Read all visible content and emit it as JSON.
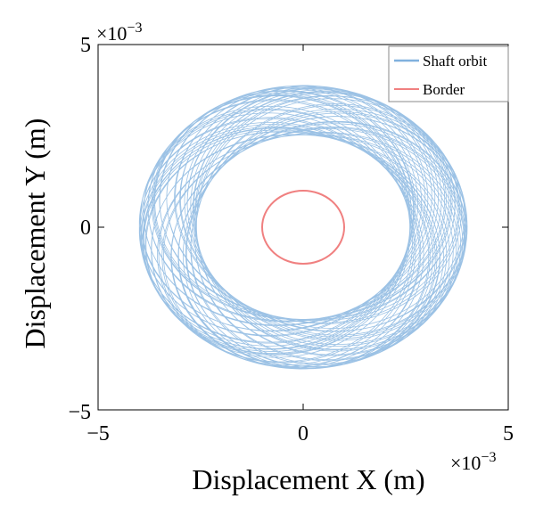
{
  "chart_data": {
    "type": "line",
    "xlabel": "Displacement X (m)",
    "ylabel": "Displacement Y (m)",
    "x_exponent": "×10",
    "x_exponent_power": "−3",
    "y_exponent": "×10",
    "y_exponent_power": "−3",
    "xlim": [
      -5,
      5
    ],
    "ylim": [
      -5,
      5
    ],
    "x_ticks": [
      -5,
      0,
      5
    ],
    "x_tick_labels": [
      "−5",
      "0",
      "5"
    ],
    "y_ticks": [
      -5,
      0,
      5
    ],
    "y_tick_labels": [
      "−5",
      "0",
      "5"
    ],
    "grid": false,
    "legend_position": "top-right",
    "series": [
      {
        "name": "Shaft orbit",
        "color": "#4a90d0",
        "shape": "precessing rose orbit",
        "center": [
          0,
          0
        ],
        "radius_min": 2.6,
        "radius_max": 4.0,
        "lobes": 9
      },
      {
        "name": "Border",
        "color": "#f08080",
        "shape": "circle",
        "center": [
          0,
          0
        ],
        "radius_x": 1.0,
        "radius_y": 1.0
      }
    ]
  }
}
